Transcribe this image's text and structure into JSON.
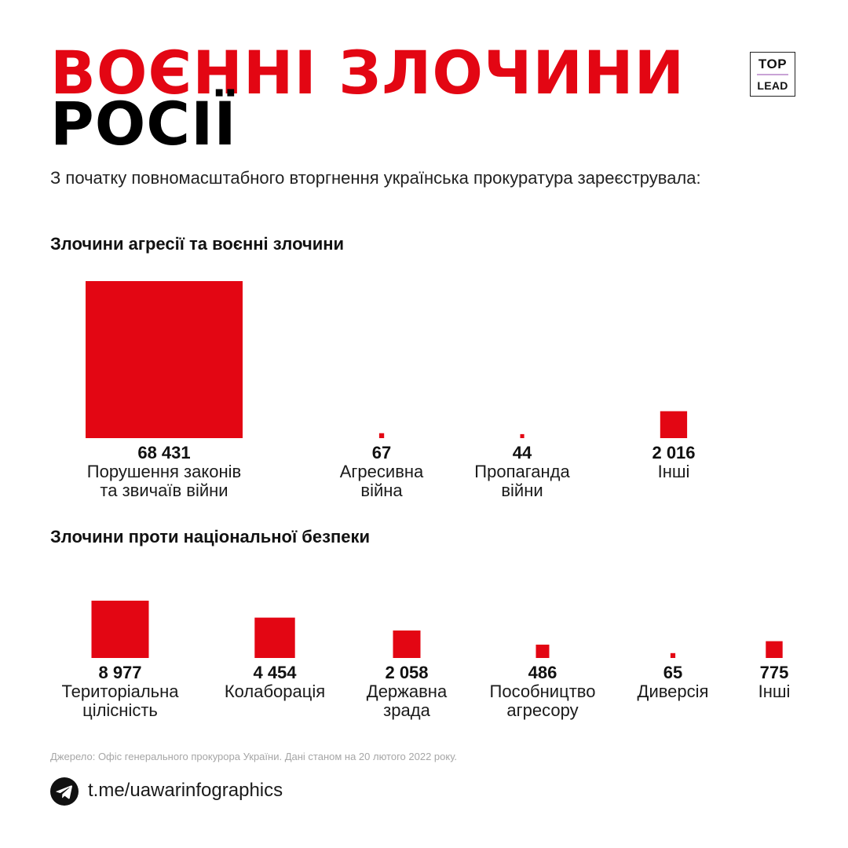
{
  "header": {
    "title_line1": "ВОЄННІ ЗЛОЧИНИ",
    "title_line2": "РОСІЇ",
    "subtitle": "З початку повномасштабного вторгнення українська прокуратура зареєструвала:"
  },
  "logo": {
    "top_text": "TOP",
    "bottom_text": "LEAD"
  },
  "colors": {
    "accent": "#e30613",
    "title_black": "#000000",
    "logo_line": "#c9a3d6"
  },
  "chart_data": [
    {
      "type": "proportional-square",
      "title": "Злочини агресії та воєнні злочини",
      "items": [
        {
          "value_label": "68 431",
          "value": 68431,
          "label_lines": [
            "Порушення законів",
            "та звичаїв війни"
          ]
        },
        {
          "value_label": "67",
          "value": 67,
          "label_lines": [
            "Агресивна",
            "війна"
          ]
        },
        {
          "value_label": "44",
          "value": 44,
          "label_lines": [
            "Пропаганда",
            "війни"
          ]
        },
        {
          "value_label": "2 016",
          "value": 2016,
          "label_lines": [
            "Інші"
          ]
        }
      ]
    },
    {
      "type": "proportional-square",
      "title": "Злочини проти національної безпеки",
      "items": [
        {
          "value_label": "8 977",
          "value": 8977,
          "label_lines": [
            "Територіальна",
            "цілісність"
          ]
        },
        {
          "value_label": "4 454",
          "value": 4454,
          "label_lines": [
            "Колаборація"
          ]
        },
        {
          "value_label": "2 058",
          "value": 2058,
          "label_lines": [
            "Державна",
            "зрада"
          ]
        },
        {
          "value_label": "486",
          "value": 486,
          "label_lines": [
            "Пособництво",
            "агресору"
          ]
        },
        {
          "value_label": "65",
          "value": 65,
          "label_lines": [
            "Диверсія"
          ]
        },
        {
          "value_label": "775",
          "value": 775,
          "label_lines": [
            "Інші"
          ]
        }
      ]
    }
  ],
  "footer": {
    "source": "Джерело: Офіс генерального прокурора України. Дані станом на 20 лютого 2022 року.",
    "telegram_icon": "telegram-icon",
    "link": "t.me/uawarinfographics"
  }
}
